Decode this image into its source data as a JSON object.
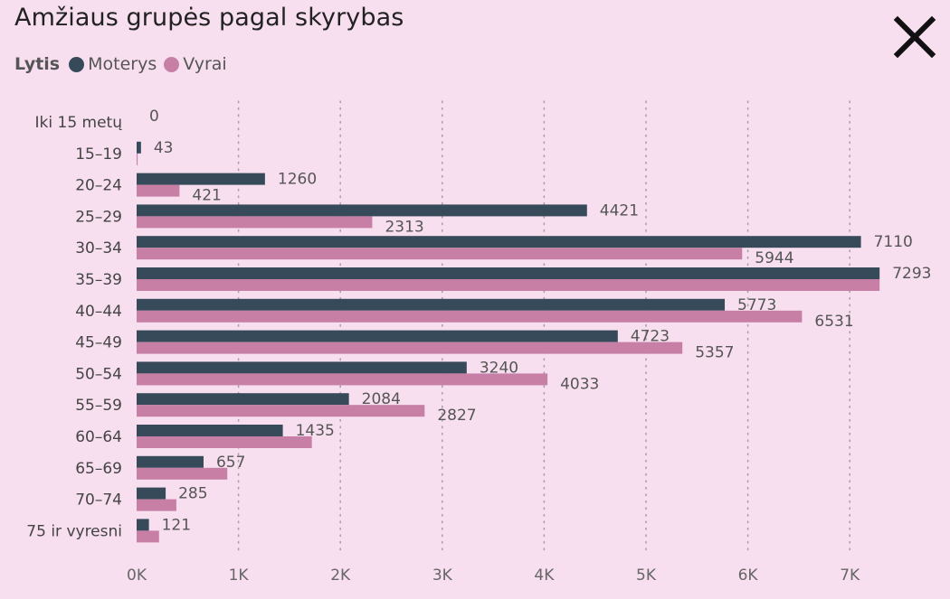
{
  "title": "Amžiaus grupės pagal skyrybas",
  "close_icon": "close-icon",
  "legend": {
    "title": "Lytis",
    "items": [
      {
        "label": "Moterys",
        "color": "#374a5a"
      },
      {
        "label": "Vyrai",
        "color": "#c77fa6"
      }
    ]
  },
  "colors": {
    "background": "#f8dff0",
    "moterys": "#374a5a",
    "vyrai": "#c77fa6"
  },
  "chart_data": {
    "type": "bar",
    "orientation": "horizontal",
    "title": "Amžiaus grupės pagal skyrybas",
    "categories": [
      "Iki 15 metų",
      "15–19",
      "20–24",
      "25–29",
      "30–34",
      "35–39",
      "40–44",
      "45–49",
      "50–54",
      "55–59",
      "60–64",
      "65–69",
      "70–74",
      "75 ir vyresni"
    ],
    "series": [
      {
        "name": "Moterys",
        "values": [
          0,
          43,
          1260,
          4421,
          7110,
          7293,
          5773,
          4723,
          3240,
          2084,
          1435,
          657,
          285,
          121
        ],
        "labels": [
          "0",
          "43",
          "1260",
          "4421",
          "7110",
          "7293",
          "5773",
          "4723",
          "3240",
          "2084",
          "1435",
          "657",
          "285",
          "121"
        ]
      },
      {
        "name": "Vyrai",
        "values": [
          0,
          10,
          421,
          2313,
          5944,
          7293,
          6531,
          5357,
          4033,
          2827,
          1720,
          890,
          390,
          220
        ],
        "labels": [
          "",
          "",
          "421",
          "2313",
          "5944",
          "",
          "6531",
          "5357",
          "4033",
          "2827",
          "",
          "",
          "",
          ""
        ]
      }
    ],
    "xticks": [
      "0K",
      "1K",
      "2K",
      "3K",
      "4K",
      "5K",
      "6K",
      "7K"
    ],
    "xlim": [
      0,
      7400
    ],
    "grid": true,
    "legend_position": "top-left"
  }
}
